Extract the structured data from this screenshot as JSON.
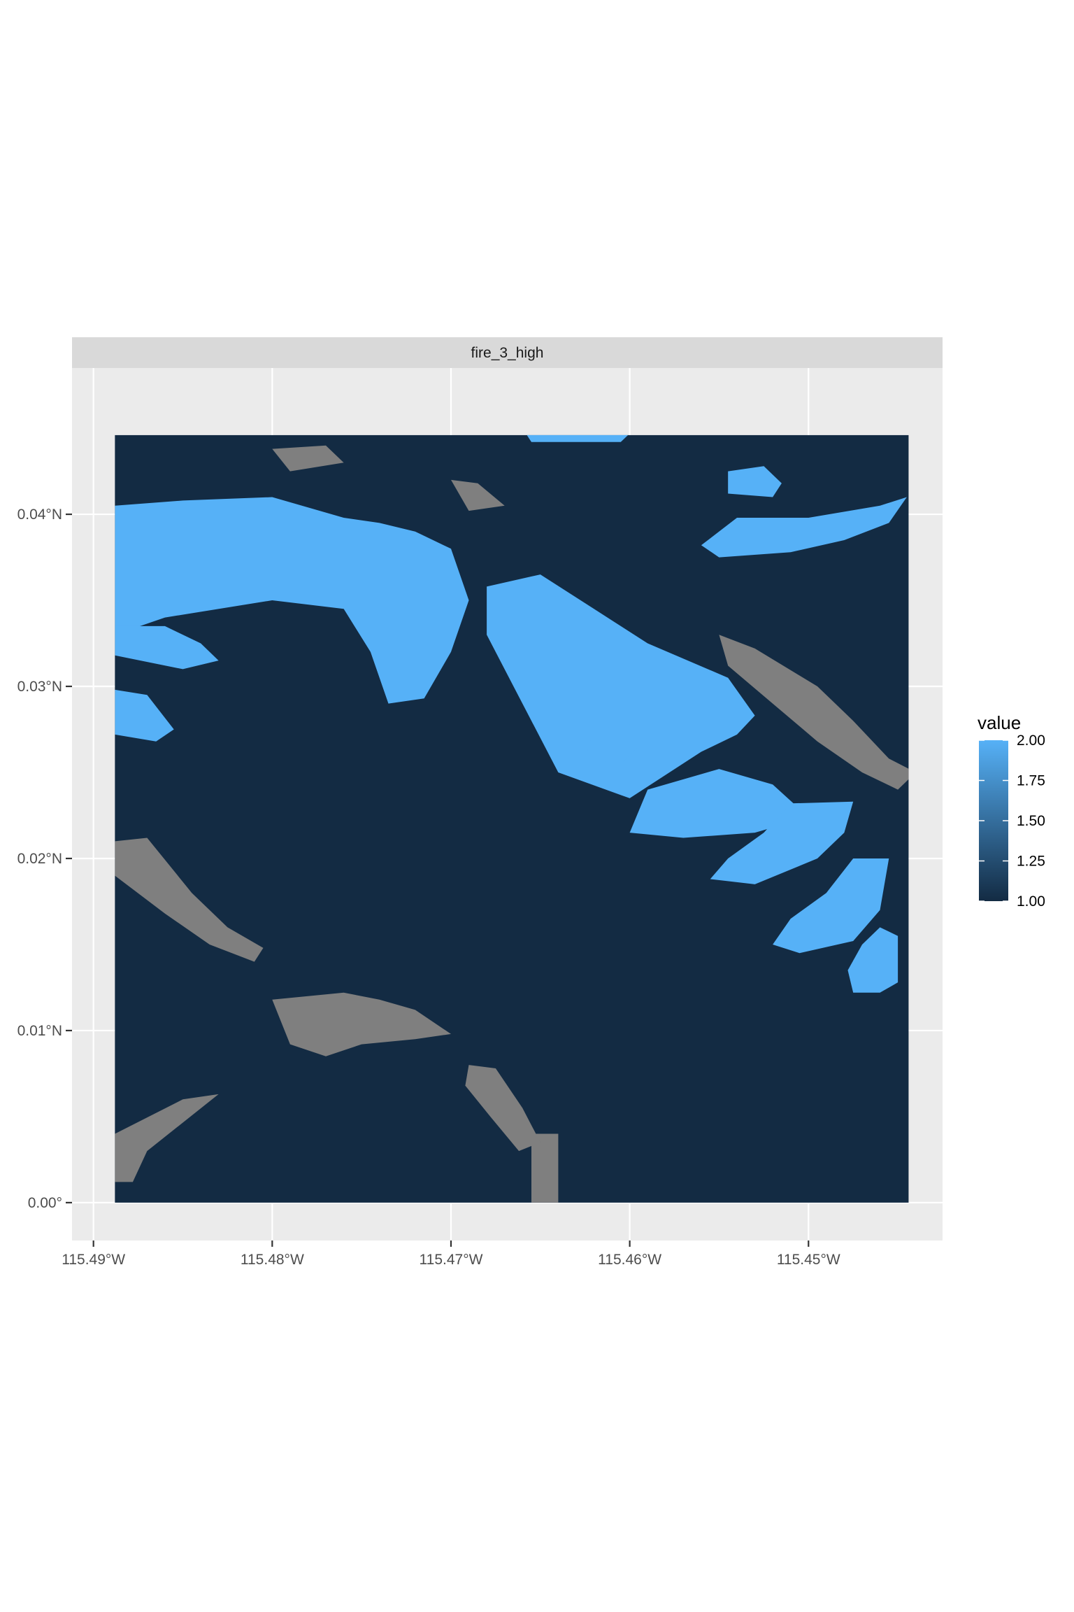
{
  "chart_data": {
    "type": "heatmap",
    "facet_label": "fire_3_high",
    "xlabel": "",
    "ylabel": "",
    "x_ticks": [
      {
        "value": -115.49,
        "label": "115.49°W"
      },
      {
        "value": -115.48,
        "label": "115.48°W"
      },
      {
        "value": -115.47,
        "label": "115.47°W"
      },
      {
        "value": -115.46,
        "label": "115.46°W"
      },
      {
        "value": -115.45,
        "label": "115.45°W"
      }
    ],
    "y_ticks": [
      {
        "value": 0.0,
        "label": "0.00°"
      },
      {
        "value": 0.01,
        "label": "0.01°N"
      },
      {
        "value": 0.02,
        "label": "0.02°N"
      },
      {
        "value": 0.03,
        "label": "0.03°N"
      },
      {
        "value": 0.04,
        "label": "0.04°N"
      }
    ],
    "xlim": [
      -115.4912,
      -115.4425
    ],
    "ylim": [
      -0.0022,
      0.0485
    ],
    "raster_extent": {
      "xmin": -115.4888,
      "xmax": -115.4444,
      "ymin": 0.0,
      "ymax": 0.0446
    },
    "legend": {
      "title": "value",
      "ticks": [
        {
          "value": 2.0,
          "label": "2.00"
        },
        {
          "value": 1.75,
          "label": "1.75"
        },
        {
          "value": 1.5,
          "label": "1.50"
        },
        {
          "value": 1.25,
          "label": "1.25"
        },
        {
          "value": 1.0,
          "label": "1.00"
        }
      ],
      "range": [
        1.0,
        2.0
      ],
      "low_color": "#132b43",
      "high_color": "#56b1f7",
      "placement": "right"
    },
    "na_color": "#7f7f7f",
    "grid": true,
    "value_regions": [
      {
        "value": 2,
        "polygon": [
          [
            -115.4888,
            0.0405
          ],
          [
            -115.485,
            0.0408
          ],
          [
            -115.48,
            0.041
          ],
          [
            -115.476,
            0.0398
          ],
          [
            -115.474,
            0.0395
          ],
          [
            -115.472,
            0.039
          ],
          [
            -115.47,
            0.038
          ],
          [
            -115.469,
            0.035
          ],
          [
            -115.47,
            0.032
          ],
          [
            -115.4715,
            0.0293
          ],
          [
            -115.4735,
            0.029
          ],
          [
            -115.4745,
            0.032
          ],
          [
            -115.476,
            0.0345
          ],
          [
            -115.48,
            0.035
          ],
          [
            -115.486,
            0.034
          ],
          [
            -115.4888,
            0.033
          ]
        ]
      },
      {
        "value": 2,
        "polygon": [
          [
            -115.4888,
            0.0335
          ],
          [
            -115.486,
            0.0335
          ],
          [
            -115.484,
            0.0325
          ],
          [
            -115.483,
            0.0315
          ],
          [
            -115.485,
            0.031
          ],
          [
            -115.4888,
            0.0318
          ]
        ]
      },
      {
        "value": 2,
        "polygon": [
          [
            -115.4888,
            0.0298
          ],
          [
            -115.487,
            0.0295
          ],
          [
            -115.4855,
            0.0275
          ],
          [
            -115.4865,
            0.0268
          ],
          [
            -115.4888,
            0.0272
          ]
        ]
      },
      {
        "value": 2,
        "polygon": [
          [
            -115.468,
            0.0358
          ],
          [
            -115.465,
            0.0365
          ],
          [
            -115.462,
            0.0345
          ],
          [
            -115.459,
            0.0325
          ],
          [
            -115.4545,
            0.0305
          ],
          [
            -115.453,
            0.0283
          ],
          [
            -115.454,
            0.0272
          ],
          [
            -115.456,
            0.0262
          ],
          [
            -115.46,
            0.0235
          ],
          [
            -115.464,
            0.025
          ],
          [
            -115.465,
            0.027
          ],
          [
            -115.4665,
            0.03
          ],
          [
            -115.468,
            0.033
          ]
        ]
      },
      {
        "value": 2,
        "polygon": [
          [
            -115.459,
            0.024
          ],
          [
            -115.455,
            0.0252
          ],
          [
            -115.452,
            0.0243
          ],
          [
            -115.45,
            0.0224
          ],
          [
            -115.453,
            0.0215
          ],
          [
            -115.457,
            0.0212
          ],
          [
            -115.46,
            0.0215
          ]
        ]
      },
      {
        "value": 2,
        "polygon": [
          [
            -115.451,
            0.0232
          ],
          [
            -115.4475,
            0.0233
          ],
          [
            -115.448,
            0.0215
          ],
          [
            -115.4495,
            0.02
          ],
          [
            -115.453,
            0.0185
          ],
          [
            -115.4555,
            0.0188
          ],
          [
            -115.4545,
            0.02
          ],
          [
            -115.4525,
            0.0215
          ]
        ]
      },
      {
        "value": 2,
        "polygon": [
          [
            -115.4475,
            0.02
          ],
          [
            -115.4455,
            0.02
          ],
          [
            -115.446,
            0.017
          ],
          [
            -115.4475,
            0.0152
          ],
          [
            -115.4505,
            0.0145
          ],
          [
            -115.452,
            0.015
          ],
          [
            -115.451,
            0.0165
          ],
          [
            -115.449,
            0.018
          ]
        ]
      },
      {
        "value": 2,
        "polygon": [
          [
            -115.446,
            0.016
          ],
          [
            -115.445,
            0.0155
          ],
          [
            -115.445,
            0.0128
          ],
          [
            -115.446,
            0.0122
          ],
          [
            -115.4475,
            0.0122
          ],
          [
            -115.4478,
            0.0135
          ],
          [
            -115.447,
            0.015
          ]
        ]
      },
      {
        "value": 2,
        "polygon": [
          [
            -115.454,
            0.0398
          ],
          [
            -115.45,
            0.0398
          ],
          [
            -115.446,
            0.0405
          ],
          [
            -115.4445,
            0.041
          ],
          [
            -115.4455,
            0.0395
          ],
          [
            -115.448,
            0.0385
          ],
          [
            -115.451,
            0.0378
          ],
          [
            -115.455,
            0.0375
          ],
          [
            -115.456,
            0.0382
          ]
        ]
      },
      {
        "value": 2,
        "polygon": [
          [
            -115.462,
            0.0275
          ],
          [
            -115.46,
            0.0278
          ],
          [
            -115.4595,
            0.0265
          ],
          [
            -115.4605,
            0.0255
          ],
          [
            -115.4625,
            0.0258
          ]
        ]
      },
      {
        "value": 2,
        "polygon": [
          [
            -115.4545,
            0.0425
          ],
          [
            -115.4525,
            0.0428
          ],
          [
            -115.4515,
            0.0418
          ],
          [
            -115.452,
            0.041
          ],
          [
            -115.4545,
            0.0412
          ]
        ]
      },
      {
        "value": 2,
        "polygon": [
          [
            -115.466,
            0.045
          ],
          [
            -115.46,
            0.0447
          ],
          [
            -115.4605,
            0.0442
          ],
          [
            -115.4655,
            0.0442
          ]
        ]
      }
    ],
    "na_regions": [
      {
        "polygon": [
          [
            -115.4888,
            0.021
          ],
          [
            -115.487,
            0.0212
          ],
          [
            -115.4845,
            0.018
          ],
          [
            -115.4825,
            0.016
          ],
          [
            -115.4805,
            0.0148
          ],
          [
            -115.481,
            0.014
          ],
          [
            -115.4835,
            0.015
          ],
          [
            -115.486,
            0.0168
          ],
          [
            -115.4888,
            0.019
          ]
        ]
      },
      {
        "polygon": [
          [
            -115.48,
            0.0118
          ],
          [
            -115.476,
            0.0122
          ],
          [
            -115.474,
            0.0118
          ],
          [
            -115.472,
            0.0112
          ],
          [
            -115.47,
            0.0098
          ],
          [
            -115.472,
            0.0095
          ],
          [
            -115.475,
            0.0092
          ],
          [
            -115.477,
            0.0085
          ],
          [
            -115.479,
            0.0092
          ]
        ]
      },
      {
        "polygon": [
          [
            -115.485,
            0.006
          ],
          [
            -115.483,
            0.0063
          ],
          [
            -115.487,
            0.003
          ],
          [
            -115.4878,
            0.0012
          ],
          [
            -115.4888,
            0.0012
          ],
          [
            -115.4888,
            0.004
          ]
        ]
      },
      {
        "polygon": [
          [
            -115.4655,
            0.004
          ],
          [
            -115.464,
            0.004
          ],
          [
            -115.464,
            0.0
          ],
          [
            -115.4655,
            0.0
          ]
        ]
      },
      {
        "polygon": [
          [
            -115.469,
            0.008
          ],
          [
            -115.4675,
            0.0078
          ],
          [
            -115.466,
            0.0055
          ],
          [
            -115.465,
            0.0035
          ],
          [
            -115.4662,
            0.003
          ],
          [
            -115.4678,
            0.005
          ],
          [
            -115.4692,
            0.0068
          ]
        ]
      },
      {
        "polygon": [
          [
            -115.48,
            0.0438
          ],
          [
            -115.477,
            0.044
          ],
          [
            -115.476,
            0.043
          ],
          [
            -115.479,
            0.0425
          ]
        ]
      },
      {
        "polygon": [
          [
            -115.455,
            0.033
          ],
          [
            -115.453,
            0.0322
          ],
          [
            -115.4495,
            0.03
          ],
          [
            -115.4475,
            0.028
          ],
          [
            -115.4455,
            0.0258
          ],
          [
            -115.444,
            0.025
          ],
          [
            -115.445,
            0.024
          ],
          [
            -115.447,
            0.025
          ],
          [
            -115.4495,
            0.0268
          ],
          [
            -115.452,
            0.029
          ],
          [
            -115.4545,
            0.0312
          ]
        ]
      },
      {
        "polygon": [
          [
            -115.47,
            0.042
          ],
          [
            -115.4685,
            0.0418
          ],
          [
            -115.467,
            0.0405
          ],
          [
            -115.469,
            0.0402
          ]
        ]
      }
    ]
  }
}
